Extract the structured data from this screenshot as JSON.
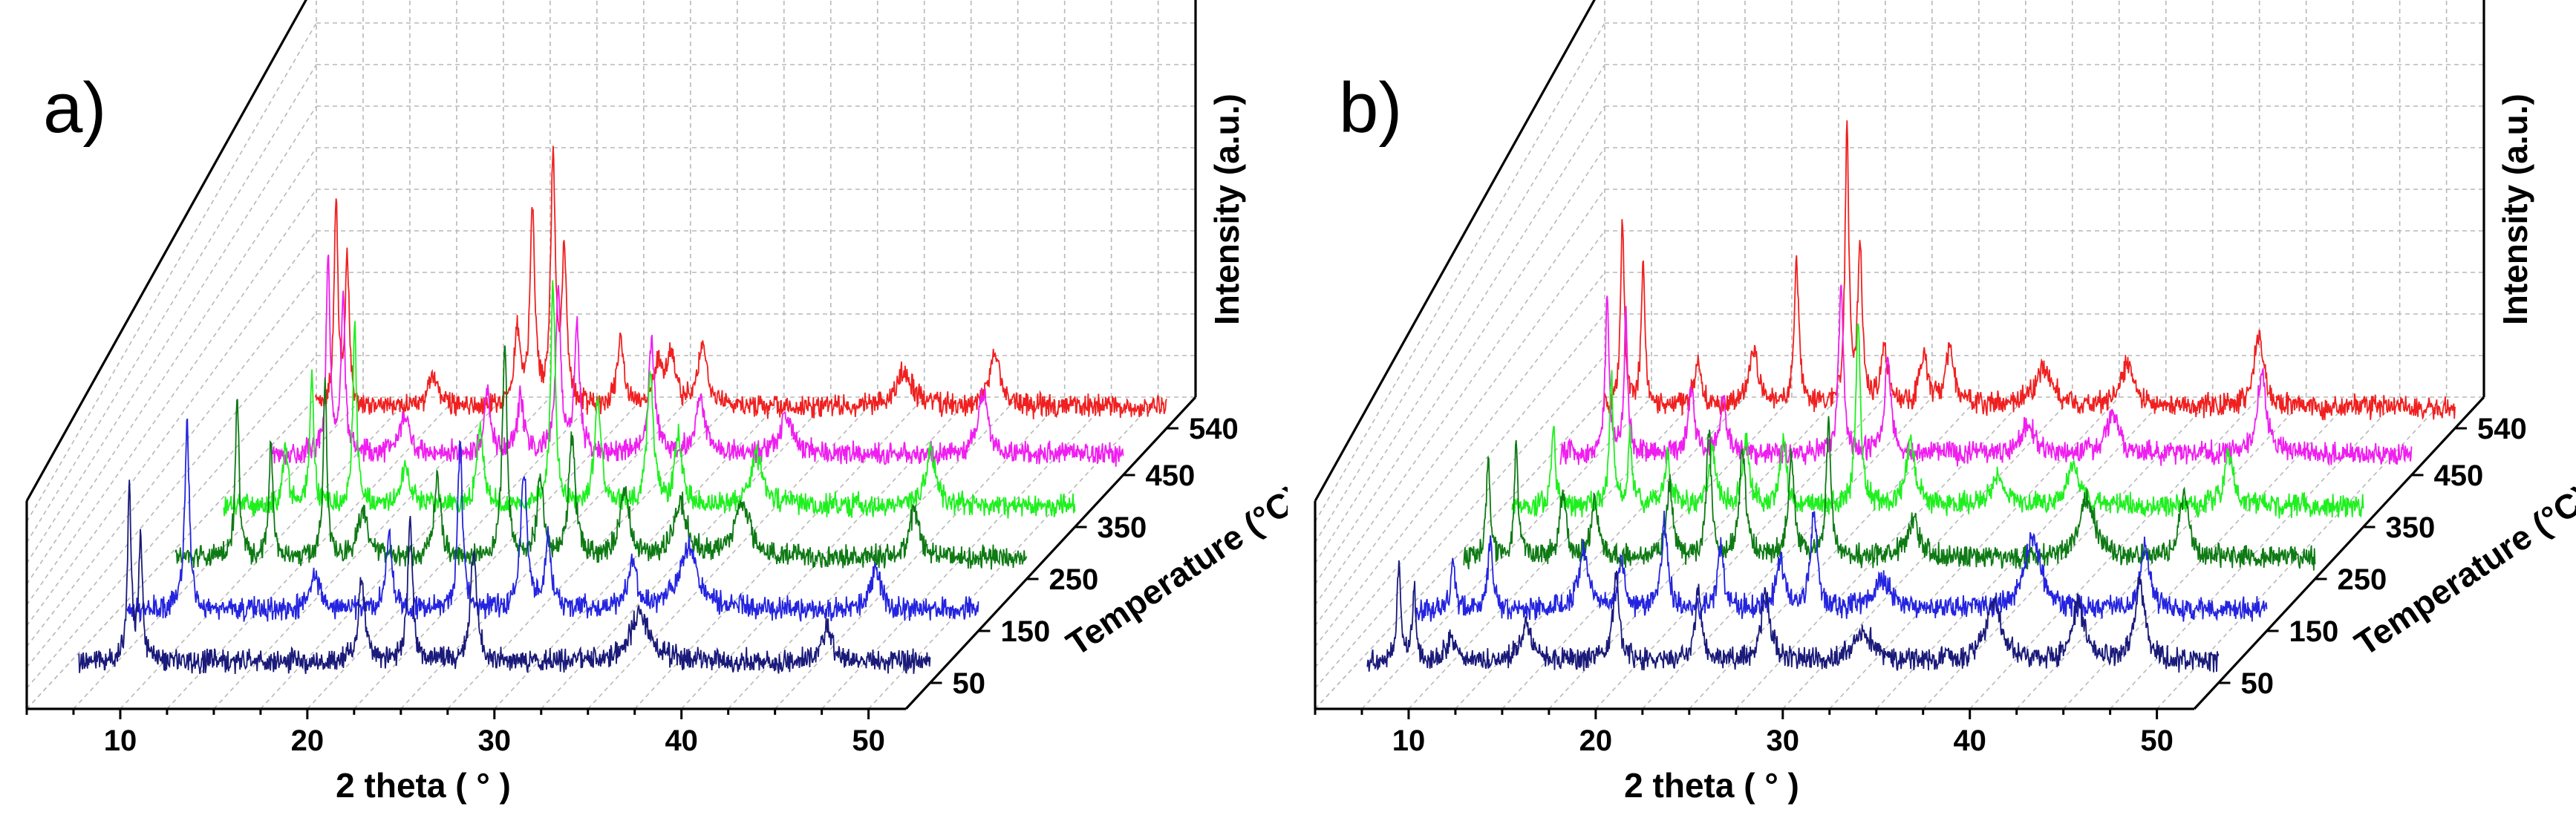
{
  "figure": {
    "panels": [
      {
        "id": "a",
        "letter": "a)"
      },
      {
        "id": "b",
        "letter": "b)"
      }
    ]
  },
  "chart_data": [
    {
      "type": "line",
      "panel_label": "a)",
      "subtype": "3d-waterfall",
      "xlabel": "2 theta ( ° )",
      "ylabel": "Temperature (°C)",
      "zlabel": "Intensity (a.u.)",
      "xlim": [
        5,
        52
      ],
      "xticks": [
        10,
        20,
        30,
        40,
        50
      ],
      "yticks": [
        50,
        150,
        250,
        350,
        450,
        540
      ],
      "series": [
        {
          "name": "50",
          "color": "#1a1a7a",
          "peaks": [
            [
              9.2,
              2.8,
              0.12
            ],
            [
              9.8,
              2.0,
              0.12
            ],
            [
              21.6,
              1.4,
              0.2
            ],
            [
              24.2,
              2.4,
              0.15
            ],
            [
              27.6,
              1.8,
              0.2
            ],
            [
              36.5,
              0.8,
              0.6
            ],
            [
              46.5,
              0.6,
              0.3
            ]
          ]
        },
        {
          "name": "150",
          "color": "#2424e0",
          "peaks": [
            [
              9.7,
              3.0,
              0.15
            ],
            [
              16.5,
              0.6,
              0.3
            ],
            [
              20.5,
              1.2,
              0.2
            ],
            [
              24.3,
              2.8,
              0.15
            ],
            [
              27.7,
              2.3,
              0.2
            ],
            [
              29.0,
              1.1,
              0.2
            ],
            [
              33.5,
              0.7,
              0.3
            ],
            [
              36.5,
              1.0,
              0.6
            ],
            [
              46.5,
              0.7,
              0.3
            ]
          ]
        },
        {
          "name": "250",
          "color": "#0e7a14",
          "peaks": [
            [
              9.8,
              2.6,
              0.12
            ],
            [
              11.6,
              1.9,
              0.12
            ],
            [
              14.5,
              2.8,
              0.12
            ],
            [
              16.5,
              0.8,
              0.3
            ],
            [
              20.5,
              1.3,
              0.2
            ],
            [
              24.1,
              3.5,
              0.15
            ],
            [
              26.0,
              1.3,
              0.2
            ],
            [
              27.7,
              2.0,
              0.2
            ],
            [
              30.5,
              1.1,
              0.3
            ],
            [
              33.5,
              0.9,
              0.4
            ],
            [
              36.8,
              0.9,
              0.5
            ],
            [
              46.0,
              0.8,
              0.3
            ]
          ]
        },
        {
          "name": "350",
          "color": "#1ef01e",
          "peaks": [
            [
              9.8,
              1.0,
              0.15
            ],
            [
              11.2,
              2.2,
              0.12
            ],
            [
              13.5,
              2.9,
              0.12
            ],
            [
              16.2,
              0.6,
              0.3
            ],
            [
              20.2,
              1.3,
              0.2
            ],
            [
              24.1,
              3.6,
              0.15
            ],
            [
              26.5,
              1.8,
              0.2
            ],
            [
              29.3,
              2.2,
              0.2
            ],
            [
              30.8,
              1.2,
              0.2
            ],
            [
              35.0,
              0.8,
              0.4
            ],
            [
              44.3,
              0.9,
              0.3
            ]
          ]
        },
        {
          "name": "450",
          "color": "#f01ef0",
          "peaks": [
            [
              9.5,
              3.4,
              0.12
            ],
            [
              10.3,
              2.6,
              0.12
            ],
            [
              13.6,
              0.6,
              0.3
            ],
            [
              18.0,
              1.0,
              0.2
            ],
            [
              19.8,
              0.9,
              0.2
            ],
            [
              21.8,
              2.7,
              0.15
            ],
            [
              22.8,
              2.2,
              0.15
            ],
            [
              26.8,
              1.8,
              0.2
            ],
            [
              29.4,
              0.9,
              0.3
            ],
            [
              34.0,
              0.6,
              0.4
            ],
            [
              44.5,
              1.0,
              0.3
            ]
          ]
        },
        {
          "name": "540",
          "color": "#f02020",
          "peaks": [
            [
              7.6,
              3.4,
              0.12
            ],
            [
              8.2,
              2.5,
              0.12
            ],
            [
              12.8,
              0.5,
              0.3
            ],
            [
              17.3,
              1.2,
              0.2
            ],
            [
              18.1,
              3.2,
              0.15
            ],
            [
              19.2,
              4.0,
              0.15
            ],
            [
              19.8,
              2.4,
              0.15
            ],
            [
              22.8,
              1.2,
              0.2
            ],
            [
              24.8,
              0.7,
              0.25
            ],
            [
              25.5,
              0.9,
              0.25
            ],
            [
              27.2,
              1.0,
              0.3
            ],
            [
              38.0,
              0.6,
              0.5
            ],
            [
              42.8,
              0.9,
              0.3
            ]
          ]
        }
      ]
    },
    {
      "type": "line",
      "panel_label": "b)",
      "subtype": "3d-waterfall",
      "xlabel": "2 theta ( ° )",
      "ylabel": "Temperature (°C)",
      "zlabel": "Intensity (a.u.)",
      "xlim": [
        5,
        52
      ],
      "xticks": [
        10,
        20,
        30,
        40,
        50
      ],
      "yticks": [
        50,
        150,
        250,
        350,
        450,
        540
      ],
      "series": [
        {
          "name": "50",
          "color": "#1a1a7a",
          "peaks": [
            [
              8.2,
              1.6,
              0.12
            ],
            [
              9.0,
              1.2,
              0.12
            ],
            [
              11.0,
              0.4,
              0.3
            ],
            [
              15.0,
              0.6,
              0.4
            ],
            [
              19.8,
              1.4,
              0.2
            ],
            [
              24.2,
              1.2,
              0.2
            ],
            [
              27.8,
              1.1,
              0.3
            ],
            [
              33.0,
              0.5,
              0.6
            ],
            [
              40.0,
              1.0,
              0.5
            ],
            [
              44.5,
              0.9,
              0.4
            ],
            [
              47.8,
              1.3,
              0.3
            ]
          ]
        },
        {
          "name": "150",
          "color": "#2424e0",
          "peaks": [
            [
              8.5,
              0.9,
              0.12
            ],
            [
              10.5,
              1.1,
              0.15
            ],
            [
              15.5,
              1.0,
              0.3
            ],
            [
              17.5,
              0.8,
              0.2
            ],
            [
              19.8,
              1.4,
              0.2
            ],
            [
              22.8,
              1.0,
              0.2
            ],
            [
              26.0,
              0.8,
              0.25
            ],
            [
              27.8,
              1.6,
              0.2
            ],
            [
              31.5,
              0.5,
              0.5
            ],
            [
              39.5,
              1.2,
              0.5
            ],
            [
              45.5,
              1.0,
              0.3
            ]
          ]
        },
        {
          "name": "250",
          "color": "#0e7a14",
          "peaks": [
            [
              7.8,
              1.6,
              0.12
            ],
            [
              9.3,
              1.8,
              0.12
            ],
            [
              11.8,
              1.0,
              0.2
            ],
            [
              13.5,
              1.0,
              0.2
            ],
            [
              17.5,
              1.2,
              0.2
            ],
            [
              19.6,
              2.1,
              0.15
            ],
            [
              21.4,
              1.8,
              0.2
            ],
            [
              24.0,
              1.6,
              0.2
            ],
            [
              26.0,
              2.2,
              0.15
            ],
            [
              30.5,
              0.6,
              0.4
            ],
            [
              39.8,
              1.0,
              0.5
            ],
            [
              45.0,
              1.0,
              0.3
            ]
          ]
        },
        {
          "name": "350",
          "color": "#1ef01e",
          "peaks": [
            [
              8.7,
              1.4,
              0.12
            ],
            [
              11.8,
              2.2,
              0.12
            ],
            [
              12.8,
              1.2,
              0.12
            ],
            [
              14.8,
              0.8,
              0.2
            ],
            [
              17.2,
              1.0,
              0.2
            ],
            [
              19.0,
              1.1,
              0.2
            ],
            [
              21.0,
              1.0,
              0.2
            ],
            [
              25.0,
              3.0,
              0.15
            ],
            [
              27.8,
              1.0,
              0.3
            ],
            [
              32.5,
              0.5,
              0.4
            ],
            [
              36.5,
              0.7,
              0.4
            ],
            [
              44.8,
              0.8,
              0.3
            ]
          ]
        },
        {
          "name": "450",
          "color": "#f01ef0",
          "peaks": [
            [
              9.0,
              2.6,
              0.12
            ],
            [
              10.0,
              2.2,
              0.12
            ],
            [
              13.5,
              1.0,
              0.2
            ],
            [
              15.2,
              0.9,
              0.2
            ],
            [
              21.5,
              2.8,
              0.15
            ],
            [
              24.0,
              1.6,
              0.2
            ],
            [
              31.5,
              0.5,
              0.4
            ],
            [
              36.0,
              0.6,
              0.4
            ],
            [
              44.0,
              1.3,
              0.3
            ]
          ]
        },
        {
          "name": "540",
          "color": "#f02020",
          "peaks": [
            [
              7.5,
              3.0,
              0.12
            ],
            [
              8.6,
              2.4,
              0.12
            ],
            [
              11.5,
              0.8,
              0.2
            ],
            [
              14.5,
              0.9,
              0.3
            ],
            [
              16.8,
              2.4,
              0.15
            ],
            [
              19.5,
              4.5,
              0.12
            ],
            [
              20.2,
              2.6,
              0.15
            ],
            [
              21.5,
              1.0,
              0.2
            ],
            [
              23.6,
              0.8,
              0.25
            ],
            [
              25.0,
              0.9,
              0.3
            ],
            [
              30.0,
              0.6,
              0.6
            ],
            [
              34.5,
              0.7,
              0.4
            ],
            [
              41.5,
              1.2,
              0.3
            ]
          ]
        }
      ]
    }
  ]
}
